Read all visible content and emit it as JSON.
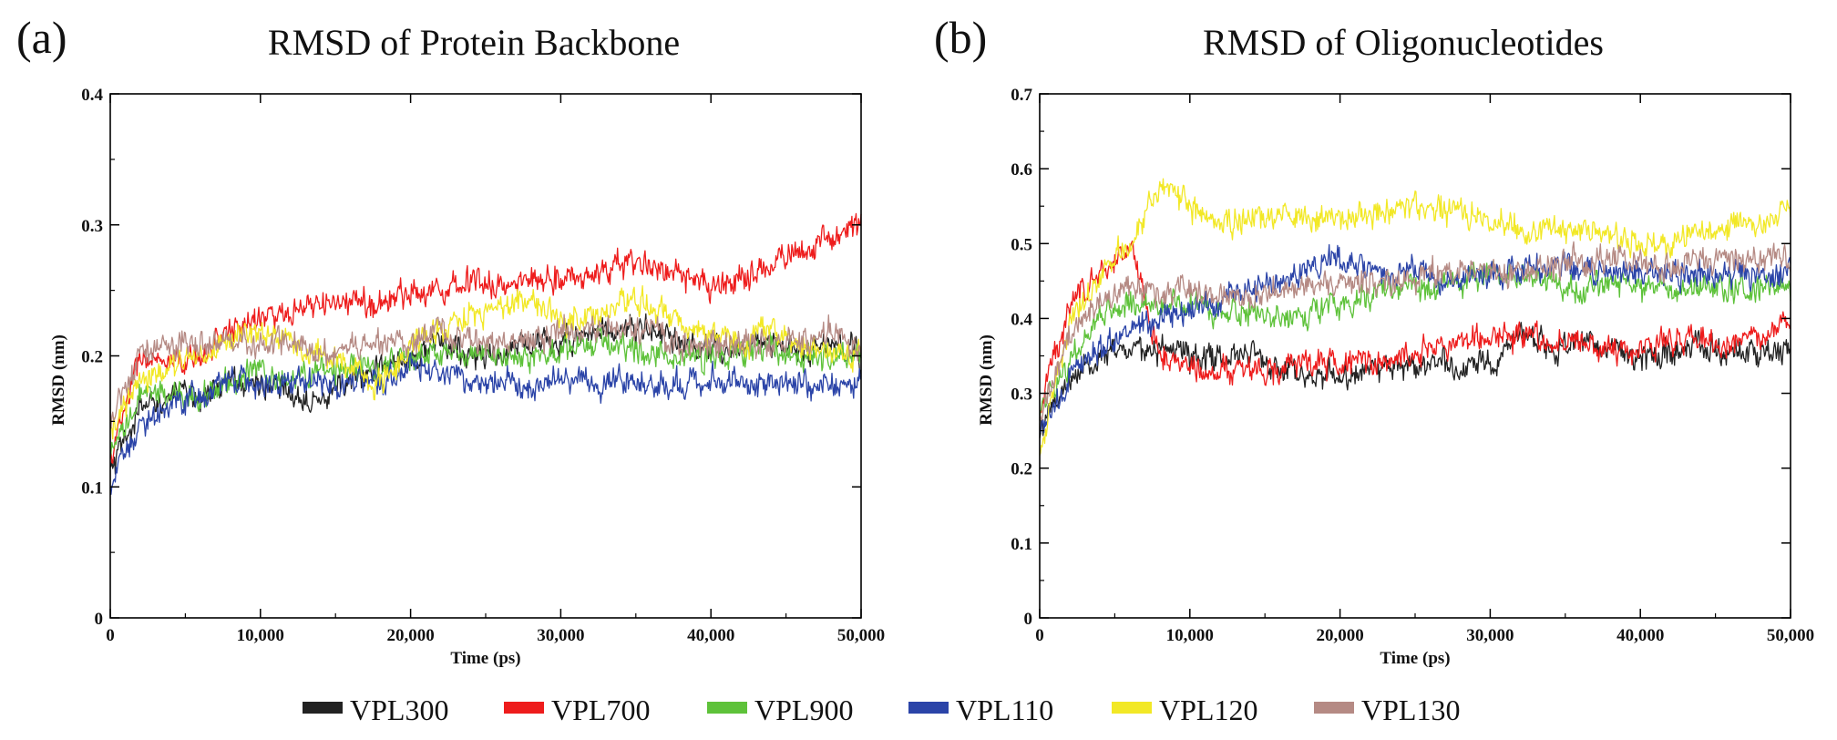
{
  "figure": {
    "panels": [
      {
        "letter": "(a)",
        "title": "RMSD of Protein Backbone"
      },
      {
        "letter": "(b)",
        "title": "RMSD of Oligonucleotides"
      }
    ]
  },
  "chart_data": [
    {
      "type": "line",
      "title": "RMSD of Protein Backbone",
      "xlabel": "Time (ps)",
      "ylabel": "RMSD (nm)",
      "xlim": [
        0,
        50000
      ],
      "ylim": [
        0,
        0.4
      ],
      "xticks": [
        0,
        10000,
        20000,
        30000,
        40000,
        50000
      ],
      "xtick_labels": [
        "0",
        "10,000",
        "20,000",
        "30,000",
        "40,000",
        "50,000"
      ],
      "yticks": [
        0,
        0.1,
        0.2,
        0.3,
        0.4
      ],
      "ytick_labels": [
        "0",
        "0.1",
        "0.2",
        "0.3",
        "0.4"
      ],
      "x": [
        0,
        2000,
        4000,
        6000,
        8000,
        10000,
        12000,
        14000,
        16000,
        18000,
        20000,
        22000,
        24000,
        26000,
        28000,
        30000,
        32000,
        34000,
        36000,
        38000,
        40000,
        42000,
        44000,
        46000,
        48000,
        50000
      ],
      "series": [
        {
          "name": "VPL300",
          "color": "#222222",
          "values": [
            0.11,
            0.16,
            0.17,
            0.17,
            0.18,
            0.18,
            0.17,
            0.17,
            0.18,
            0.19,
            0.2,
            0.21,
            0.2,
            0.2,
            0.21,
            0.21,
            0.22,
            0.22,
            0.22,
            0.21,
            0.2,
            0.21,
            0.21,
            0.2,
            0.21,
            0.2
          ]
        },
        {
          "name": "VPL700",
          "color": "#ee1c1c",
          "values": [
            0.12,
            0.2,
            0.19,
            0.2,
            0.22,
            0.23,
            0.23,
            0.24,
            0.24,
            0.24,
            0.25,
            0.25,
            0.26,
            0.25,
            0.26,
            0.26,
            0.26,
            0.27,
            0.27,
            0.26,
            0.25,
            0.26,
            0.27,
            0.28,
            0.29,
            0.3
          ]
        },
        {
          "name": "VPL900",
          "color": "#5ec23a",
          "values": [
            0.12,
            0.17,
            0.17,
            0.17,
            0.18,
            0.19,
            0.18,
            0.19,
            0.19,
            0.19,
            0.2,
            0.2,
            0.2,
            0.2,
            0.2,
            0.2,
            0.21,
            0.21,
            0.2,
            0.2,
            0.2,
            0.2,
            0.21,
            0.2,
            0.2,
            0.2
          ]
        },
        {
          "name": "VPL110",
          "color": "#2b44a8",
          "values": [
            0.1,
            0.15,
            0.16,
            0.17,
            0.18,
            0.18,
            0.18,
            0.18,
            0.18,
            0.18,
            0.19,
            0.19,
            0.18,
            0.18,
            0.18,
            0.18,
            0.18,
            0.18,
            0.18,
            0.18,
            0.18,
            0.18,
            0.18,
            0.18,
            0.18,
            0.18
          ]
        },
        {
          "name": "VPL120",
          "color": "#f2e826",
          "values": [
            0.14,
            0.18,
            0.19,
            0.2,
            0.21,
            0.22,
            0.21,
            0.2,
            0.19,
            0.18,
            0.21,
            0.22,
            0.23,
            0.24,
            0.24,
            0.23,
            0.23,
            0.24,
            0.24,
            0.22,
            0.22,
            0.21,
            0.22,
            0.21,
            0.2,
            0.2
          ]
        },
        {
          "name": "VPL130",
          "color": "#b58a84",
          "values": [
            0.15,
            0.2,
            0.21,
            0.21,
            0.21,
            0.21,
            0.21,
            0.2,
            0.21,
            0.21,
            0.21,
            0.22,
            0.21,
            0.21,
            0.21,
            0.22,
            0.22,
            0.22,
            0.22,
            0.21,
            0.21,
            0.21,
            0.21,
            0.21,
            0.22,
            0.2
          ]
        }
      ]
    },
    {
      "type": "line",
      "title": "RMSD of Oligonucleotides",
      "xlabel": "Time (ps)",
      "ylabel": "RMSD (nm)",
      "xlim": [
        0,
        50000
      ],
      "ylim": [
        0,
        0.7
      ],
      "xticks": [
        0,
        10000,
        20000,
        30000,
        40000,
        50000
      ],
      "xtick_labels": [
        "0",
        "10,000",
        "20,000",
        "30,000",
        "40,000",
        "50,000"
      ],
      "yticks": [
        0,
        0.1,
        0.2,
        0.3,
        0.4,
        0.5,
        0.6,
        0.7
      ],
      "ytick_labels": [
        "0",
        "0.1",
        "0.2",
        "0.3",
        "0.4",
        "0.5",
        "0.6",
        "0.7"
      ],
      "x": [
        0,
        2000,
        4000,
        6000,
        8000,
        10000,
        12000,
        14000,
        16000,
        18000,
        20000,
        22000,
        24000,
        26000,
        28000,
        30000,
        32000,
        34000,
        36000,
        38000,
        40000,
        42000,
        44000,
        46000,
        48000,
        50000
      ],
      "series": [
        {
          "name": "VPL300",
          "color": "#222222",
          "values": [
            0.25,
            0.32,
            0.35,
            0.36,
            0.36,
            0.35,
            0.35,
            0.36,
            0.33,
            0.33,
            0.32,
            0.33,
            0.34,
            0.34,
            0.34,
            0.34,
            0.38,
            0.36,
            0.37,
            0.36,
            0.35,
            0.36,
            0.36,
            0.35,
            0.36,
            0.36
          ]
        },
        {
          "name": "VPL700",
          "color": "#ee1c1c",
          "values": [
            0.28,
            0.42,
            0.46,
            0.5,
            0.35,
            0.34,
            0.33,
            0.33,
            0.33,
            0.34,
            0.34,
            0.34,
            0.35,
            0.36,
            0.37,
            0.38,
            0.38,
            0.37,
            0.37,
            0.36,
            0.36,
            0.37,
            0.37,
            0.36,
            0.38,
            0.39
          ]
        },
        {
          "name": "VPL900",
          "color": "#5ec23a",
          "values": [
            0.28,
            0.34,
            0.4,
            0.42,
            0.42,
            0.42,
            0.41,
            0.41,
            0.4,
            0.41,
            0.42,
            0.43,
            0.45,
            0.44,
            0.45,
            0.46,
            0.45,
            0.45,
            0.44,
            0.45,
            0.44,
            0.44,
            0.44,
            0.44,
            0.44,
            0.44
          ]
        },
        {
          "name": "VPL110",
          "color": "#2b44a8",
          "values": [
            0.25,
            0.32,
            0.36,
            0.38,
            0.4,
            0.41,
            0.42,
            0.44,
            0.45,
            0.47,
            0.48,
            0.47,
            0.46,
            0.46,
            0.45,
            0.46,
            0.46,
            0.47,
            0.47,
            0.46,
            0.46,
            0.46,
            0.46,
            0.46,
            0.46,
            0.46
          ]
        },
        {
          "name": "VPL120",
          "color": "#f2e826",
          "values": [
            0.22,
            0.4,
            0.46,
            0.5,
            0.58,
            0.55,
            0.53,
            0.53,
            0.54,
            0.53,
            0.53,
            0.54,
            0.55,
            0.55,
            0.54,
            0.53,
            0.52,
            0.52,
            0.52,
            0.51,
            0.5,
            0.5,
            0.51,
            0.52,
            0.53,
            0.54
          ]
        },
        {
          "name": "VPL130",
          "color": "#b58a84",
          "values": [
            0.27,
            0.38,
            0.42,
            0.44,
            0.43,
            0.44,
            0.43,
            0.43,
            0.44,
            0.44,
            0.45,
            0.45,
            0.45,
            0.46,
            0.46,
            0.46,
            0.46,
            0.47,
            0.48,
            0.48,
            0.47,
            0.47,
            0.48,
            0.48,
            0.48,
            0.48
          ]
        }
      ]
    }
  ],
  "legend": {
    "position": "bottom-center",
    "items": [
      {
        "label": "VPL300",
        "color": "#222222"
      },
      {
        "label": "VPL700",
        "color": "#ee1c1c"
      },
      {
        "label": "VPL900",
        "color": "#5ec23a"
      },
      {
        "label": "VPL110",
        "color": "#2b44a8"
      },
      {
        "label": "VPL120",
        "color": "#f2e826"
      },
      {
        "label": "VPL130",
        "color": "#b58a84"
      }
    ]
  }
}
